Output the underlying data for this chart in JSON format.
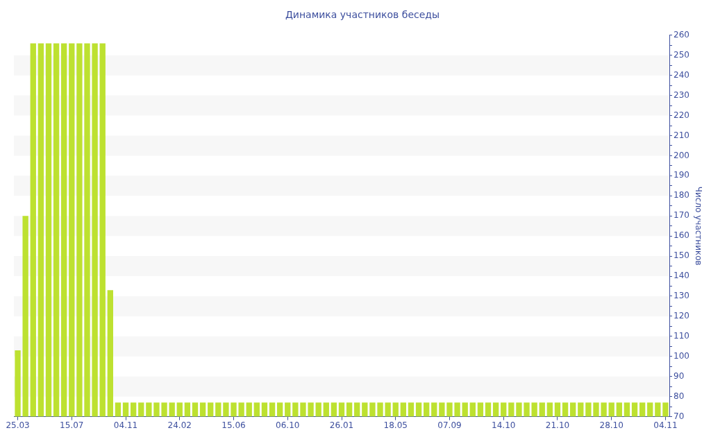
{
  "chart_data": {
    "type": "bar",
    "title": "Динамика участников беседы",
    "ylabel": "Число участников",
    "categories": [
      "25.03",
      null,
      null,
      null,
      null,
      null,
      null,
      "15.07",
      null,
      null,
      null,
      null,
      null,
      null,
      "04.11",
      null,
      null,
      null,
      null,
      null,
      null,
      "24.02",
      null,
      null,
      null,
      null,
      null,
      null,
      "15.06",
      null,
      null,
      null,
      null,
      null,
      null,
      "06.10",
      null,
      null,
      null,
      null,
      null,
      null,
      "26.01",
      null,
      null,
      null,
      null,
      null,
      null,
      "18.05",
      null,
      null,
      null,
      null,
      null,
      null,
      "07.09",
      null,
      null,
      null,
      null,
      null,
      null,
      "14.10",
      null,
      null,
      null,
      null,
      null,
      null,
      "21.10",
      null,
      null,
      null,
      null,
      null,
      null,
      "28.10",
      null,
      null,
      null,
      null,
      null,
      null,
      "04.11"
    ],
    "values": [
      103,
      170,
      256,
      256,
      256,
      256,
      256,
      256,
      256,
      256,
      256,
      256,
      133,
      77,
      77,
      77,
      77,
      77,
      77,
      77,
      77,
      77,
      77,
      77,
      77,
      77,
      77,
      77,
      77,
      77,
      77,
      77,
      77,
      77,
      77,
      77,
      77,
      77,
      77,
      77,
      77,
      77,
      77,
      77,
      77,
      77,
      77,
      77,
      77,
      77,
      77,
      77,
      77,
      77,
      77,
      77,
      77,
      77,
      77,
      77,
      77,
      77,
      77,
      77,
      77,
      77,
      77,
      77,
      77,
      77,
      77,
      77,
      77,
      77,
      77,
      77,
      77,
      77,
      77,
      77,
      77,
      77,
      77,
      77,
      77
    ],
    "color": "#bde130",
    "ylim": [
      70,
      260
    ],
    "yticks": [
      70,
      {
        "value": 75,
        "label": null
      },
      80,
      {
        "value": 85,
        "label": null
      },
      90,
      {
        "value": 95,
        "label": null
      },
      100,
      {
        "value": 105,
        "label": null
      },
      110,
      {
        "value": 115,
        "label": null
      },
      120,
      {
        "value": 125,
        "label": null
      },
      130,
      {
        "value": 135,
        "label": null
      },
      140,
      {
        "value": 145,
        "label": null
      },
      150,
      {
        "value": 155,
        "label": null
      },
      160,
      {
        "value": 165,
        "label": null
      },
      170,
      {
        "value": 175,
        "label": null
      },
      180,
      {
        "value": 185,
        "label": null
      },
      190,
      {
        "value": 195,
        "label": null
      },
      200,
      {
        "value": 205,
        "label": null
      },
      210,
      {
        "value": 215,
        "label": null
      },
      220,
      {
        "value": 225,
        "label": null
      },
      230,
      {
        "value": 235,
        "label": null
      },
      240,
      {
        "value": 245,
        "label": null
      },
      250,
      {
        "value": 255,
        "label": null
      },
      260
    ],
    "bands": [
      {
        "axis": "y",
        "from": 80,
        "to": 90,
        "color": "#f7f7f7"
      },
      {
        "axis": "y",
        "from": 100,
        "to": 110,
        "color": "#f7f7f7"
      },
      {
        "axis": "y",
        "from": 120,
        "to": 130,
        "color": "#f7f7f7"
      },
      {
        "axis": "y",
        "from": 140,
        "to": 150,
        "color": "#f7f7f7"
      },
      {
        "axis": "y",
        "from": 160,
        "to": 170,
        "color": "#f7f7f7"
      },
      {
        "axis": "y",
        "from": 180,
        "to": 190,
        "color": "#f7f7f7"
      },
      {
        "axis": "y",
        "from": 200,
        "to": 210,
        "color": "#f7f7f7"
      },
      {
        "axis": "y",
        "from": 220,
        "to": 230,
        "color": "#f7f7f7"
      },
      {
        "axis": "y",
        "from": 240,
        "to": 250,
        "color": "#f7f7f7"
      }
    ]
  }
}
